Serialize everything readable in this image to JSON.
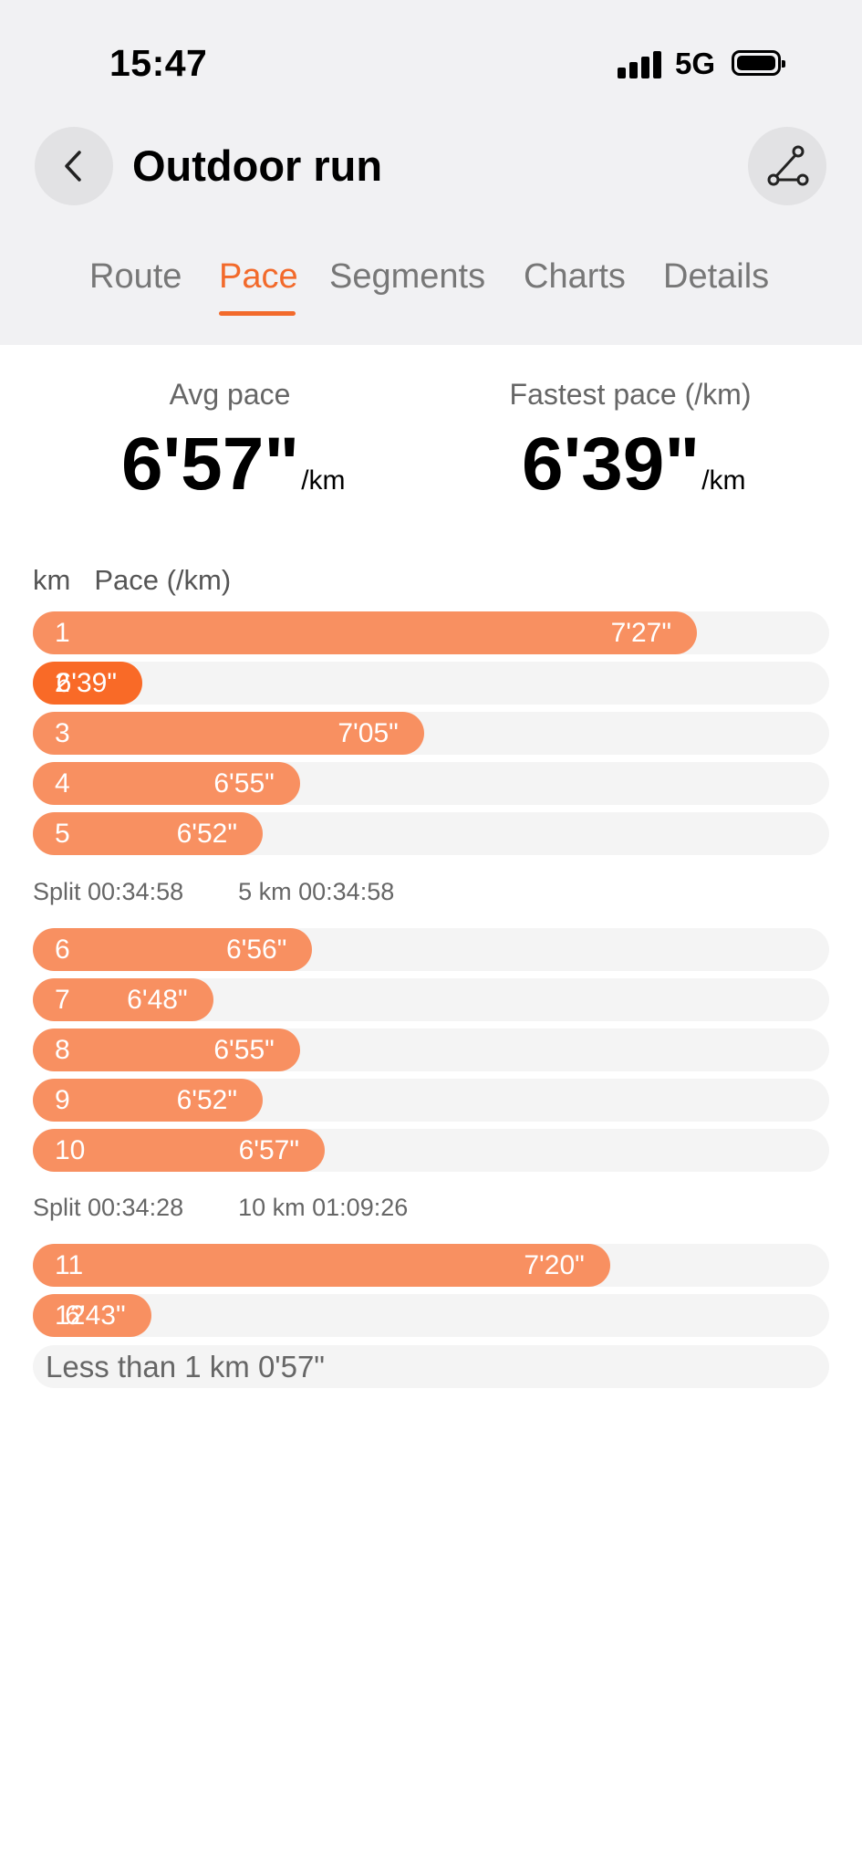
{
  "status_bar": {
    "time": "15:47",
    "network": "5G"
  },
  "header": {
    "title": "Outdoor run"
  },
  "tabs": [
    {
      "label": "Route"
    },
    {
      "label": "Pace",
      "active": true
    },
    {
      "label": "Segments"
    },
    {
      "label": "Charts"
    },
    {
      "label": "Details"
    }
  ],
  "summary": {
    "avg_label": "Avg pace",
    "avg_value": "6'57\"",
    "fastest_label": "Fastest pace (/km)",
    "fastest_value": "6'39\"",
    "unit": "/km"
  },
  "columns": {
    "km": "km",
    "pace": "Pace (/km)"
  },
  "splits": [
    {
      "km": "1",
      "pace": "7'27\"",
      "seconds": 447
    },
    {
      "km": "2",
      "pace": "6'39\"",
      "seconds": 399,
      "fastest": true
    },
    {
      "km": "3",
      "pace": "7'05\"",
      "seconds": 425
    },
    {
      "km": "4",
      "pace": "6'55\"",
      "seconds": 415
    },
    {
      "km": "5",
      "pace": "6'52\"",
      "seconds": 412
    },
    {
      "km": "6",
      "pace": "6'56\"",
      "seconds": 416
    },
    {
      "km": "7",
      "pace": "6'48\"",
      "seconds": 408
    },
    {
      "km": "8",
      "pace": "6'55\"",
      "seconds": 415
    },
    {
      "km": "9",
      "pace": "6'52\"",
      "seconds": 412
    },
    {
      "km": "10",
      "pace": "6'57\"",
      "seconds": 417
    },
    {
      "km": "11",
      "pace": "7'20\"",
      "seconds": 440
    },
    {
      "km": "12",
      "pace": "6'43\"",
      "seconds": 403
    }
  ],
  "split_summaries": [
    {
      "split": "Split 00:34:58",
      "cumulative": "5 km 00:34:58"
    },
    {
      "split": "Split 00:34:28",
      "cumulative": "10 km 01:09:26"
    }
  ],
  "remainder": "Less than 1 km 0'57\"",
  "colors": {
    "accent": "#f26a2b",
    "bar": "#f89061",
    "bar_fastest": "#f96a27",
    "track": "#f4f4f4"
  },
  "icons": {
    "back": "chevron-left-icon",
    "route": "route-icon"
  }
}
